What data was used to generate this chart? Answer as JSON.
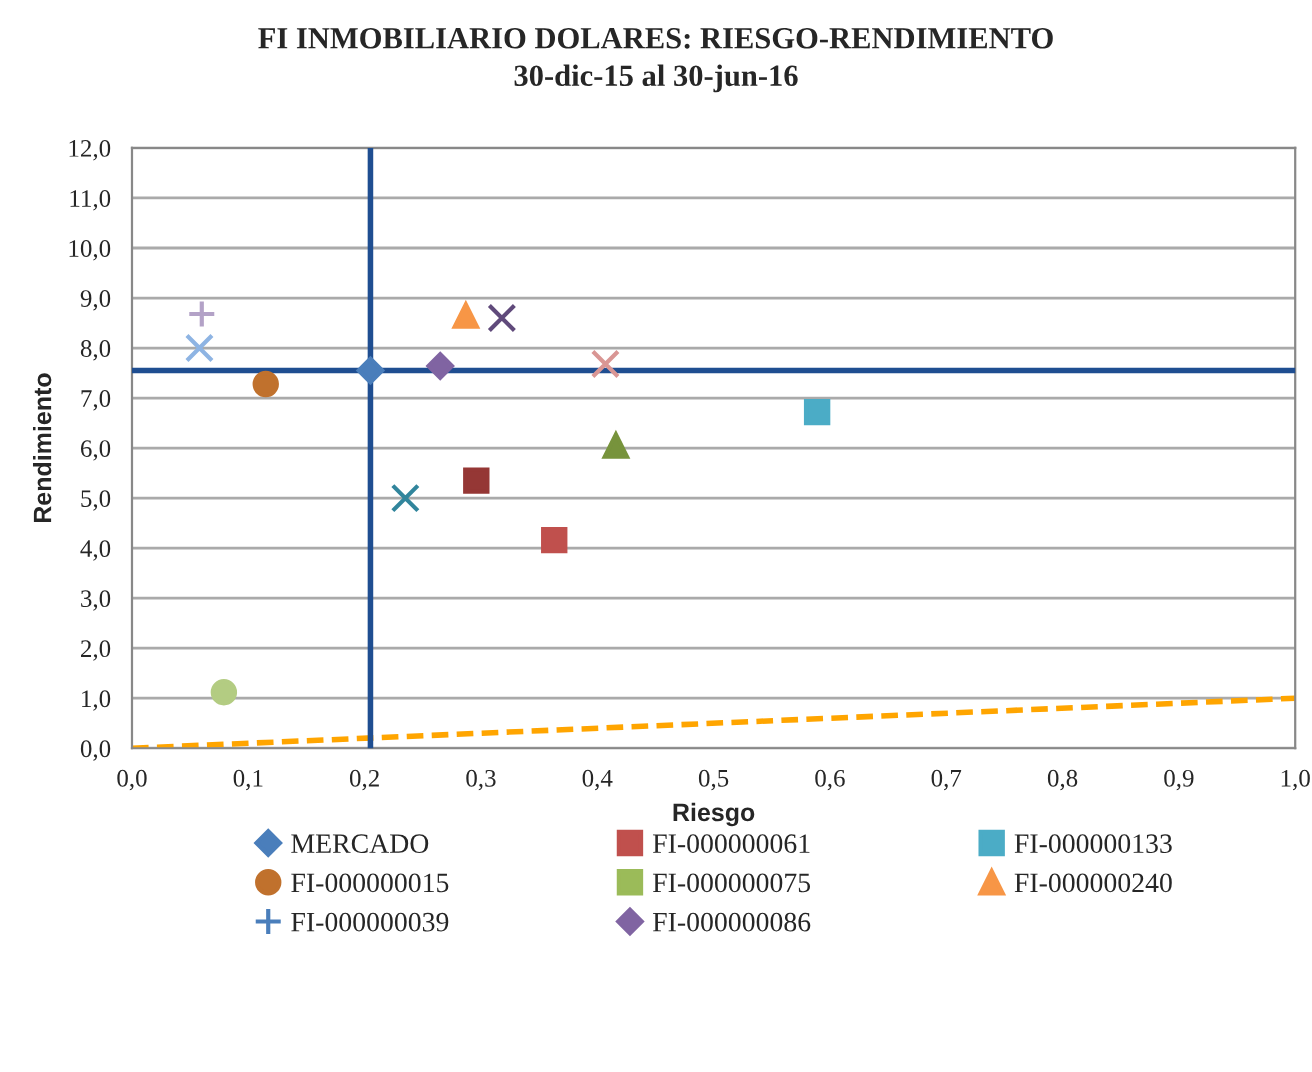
{
  "chart_data": {
    "type": "scatter",
    "title": "FI INMOBILIARIO DOLARES: RIESGO-RENDIMIENTO",
    "subtitle": "30-dic-15 al 30-jun-16",
    "xlabel": "Riesgo",
    "ylabel": "Rendimiento",
    "xlim": [
      0,
      1
    ],
    "xticks": [
      {
        "value": 0,
        "label": "0,0"
      },
      {
        "value": 0.1,
        "label": "0,1"
      },
      {
        "value": 0.2,
        "label": "0,2"
      },
      {
        "value": 0.3,
        "label": "0,3"
      },
      {
        "value": 0.4,
        "label": "0,4"
      },
      {
        "value": 0.5,
        "label": "0,5"
      },
      {
        "value": 0.6,
        "label": "0,6"
      },
      {
        "value": 0.7,
        "label": "0,7"
      },
      {
        "value": 0.8,
        "label": "0,8"
      },
      {
        "value": 0.9,
        "label": "0,9"
      },
      {
        "value": 1,
        "label": "1,0"
      }
    ],
    "ylim": [
      0,
      12
    ],
    "yticks": [
      {
        "value": 0,
        "label": "0,0"
      },
      {
        "value": 1,
        "label": "1,0"
      },
      {
        "value": 2,
        "label": "2,0"
      },
      {
        "value": 3,
        "label": "3,0"
      },
      {
        "value": 4,
        "label": "4,0"
      },
      {
        "value": 5,
        "label": "5,0"
      },
      {
        "value": 6,
        "label": "6,0"
      },
      {
        "value": 7,
        "label": "7,0"
      },
      {
        "value": 8,
        "label": "8,0"
      },
      {
        "value": 9,
        "label": "9,0"
      },
      {
        "value": 10,
        "label": "10,0"
      },
      {
        "value": 11,
        "label": "11,0"
      },
      {
        "value": 12,
        "label": "12,0"
      }
    ],
    "grid": "y",
    "legend": "bottom",
    "series": [
      {
        "name": "MERCADO",
        "color": "#4a7ebb",
        "marker": "diamond",
        "x": [
          0.205
        ],
        "values": [
          7.55
        ]
      },
      {
        "color": "#953735",
        "marker": "square",
        "x": [
          0.296
        ],
        "values": [
          5.35
        ]
      },
      {
        "color": "#77933c",
        "marker": "triangle",
        "x": [
          0.416
        ],
        "values": [
          6.05
        ]
      },
      {
        "color": "#604a7b",
        "marker": "cross",
        "x": [
          0.318
        ],
        "values": [
          8.6
        ]
      },
      {
        "color": "#31859c",
        "marker": "cross",
        "x": [
          0.235
        ],
        "values": [
          5.0
        ]
      },
      {
        "name": "FI-000000015",
        "color": "#c0712d",
        "marker": "circle",
        "x": [
          0.115
        ],
        "values": [
          7.28
        ]
      },
      {
        "name": "FI-000000039",
        "color": "#4a7ebb",
        "marker": "plus"
      },
      {
        "name": "FI-000000061",
        "color": "#c0504d",
        "marker": "square",
        "x": [
          0.363
        ],
        "values": [
          4.16
        ]
      },
      {
        "name": "FI-000000075",
        "color": "#9bbb59",
        "marker": "square"
      },
      {
        "name": "FI-000000086",
        "color": "#8064a2",
        "marker": "diamond",
        "x": [
          0.265
        ],
        "values": [
          7.64
        ]
      },
      {
        "name": "FI-000000133",
        "color": "#4bacc6",
        "marker": "square",
        "x": [
          0.589
        ],
        "values": [
          6.72
        ]
      },
      {
        "name": "FI-000000240",
        "color": "#f79646",
        "marker": "triangle",
        "x": [
          0.287
        ],
        "values": [
          8.65
        ]
      },
      {
        "color": "#8eb4e3",
        "marker": "cross",
        "x": [
          0.058
        ],
        "values": [
          8.0
        ]
      },
      {
        "color": "#d99694",
        "marker": "cross",
        "x": [
          0.407
        ],
        "values": [
          7.68
        ]
      },
      {
        "color": "#b3cc82",
        "marker": "circle",
        "x": [
          0.079
        ],
        "values": [
          1.12
        ]
      },
      {
        "color": "#b3a2c7",
        "marker": "plus",
        "x": [
          0.06
        ],
        "values": [
          8.68
        ]
      },
      {
        "type": "line",
        "color": "#ffa500",
        "line_style": "dashed",
        "marker": "none",
        "x": [
          0,
          1
        ],
        "values": [
          0,
          1
        ]
      }
    ],
    "ref_lines": [
      {
        "axis": "x",
        "value": 0.205,
        "color": "#1f4e91"
      },
      {
        "axis": "y",
        "value": 7.55,
        "color": "#1f4e91"
      }
    ]
  }
}
